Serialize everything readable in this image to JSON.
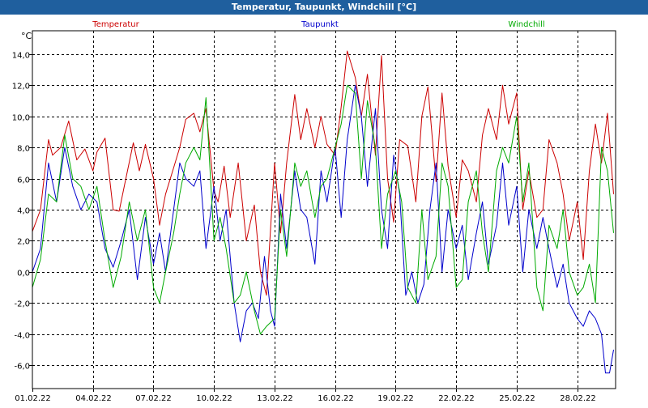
{
  "window_title": "Temperatur, Taupunkt, Windchill [°C]",
  "chart_data": {
    "type": "line",
    "title": "Temperatur, Taupunkt, Windchill [°C]",
    "ylabel": "°C",
    "xlabel": "",
    "ylim": [
      -7.5,
      15.5
    ],
    "xlim": [
      0,
      28.9
    ],
    "yticks": [
      14.0,
      12.0,
      10.0,
      8.0,
      6.0,
      4.0,
      2.0,
      0.0,
      -2.0,
      -4.0,
      -6.0
    ],
    "ytick_labels": [
      "14,0",
      "12,0",
      "10,0",
      "8,0",
      "6,0",
      "4,0",
      "2,0",
      "0,0",
      "-2,0",
      "-4,0",
      "-6,0"
    ],
    "xticks": [
      0,
      3,
      6,
      9,
      12,
      15,
      18,
      21,
      24,
      27
    ],
    "xtick_labels": [
      "01.02.22",
      "04.02.22",
      "07.02.22",
      "10.02.22",
      "13.02.22",
      "16.02.22",
      "19.02.22",
      "22.02.22",
      "25.02.22",
      "28.02.22"
    ],
    "grid": true,
    "series": [
      {
        "name": "Temperatur",
        "color": "#cc0000",
        "x": [
          0,
          0.4,
          0.8,
          1.0,
          1.4,
          1.8,
          2.2,
          2.6,
          3.0,
          3.2,
          3.6,
          4.0,
          4.3,
          4.6,
          5.0,
          5.3,
          5.6,
          6.0,
          6.3,
          6.6,
          7.0,
          7.3,
          7.6,
          8.0,
          8.3,
          8.6,
          9.0,
          9.2,
          9.5,
          9.8,
          10.2,
          10.6,
          11.0,
          11.3,
          11.6,
          12.0,
          12.3,
          12.6,
          13.0,
          13.3,
          13.6,
          14.0,
          14.3,
          14.6,
          15.0,
          15.3,
          15.6,
          16.0,
          16.3,
          16.6,
          17.0,
          17.3,
          17.6,
          17.9,
          18.2,
          18.6,
          19.0,
          19.3,
          19.6,
          20.0,
          20.3,
          20.6,
          21.0,
          21.3,
          21.6,
          22.0,
          22.3,
          22.6,
          23.0,
          23.3,
          23.6,
          24.0,
          24.3,
          24.6,
          25.0,
          25.3,
          25.6,
          26.0,
          26.3,
          26.6,
          27.0,
          27.3,
          27.6,
          27.9,
          28.2,
          28.5,
          28.8
        ],
        "values": [
          2.6,
          4.0,
          8.5,
          7.5,
          8.0,
          9.7,
          7.2,
          7.9,
          6.5,
          7.7,
          8.6,
          4.0,
          3.9,
          5.8,
          8.3,
          6.5,
          8.2,
          6.0,
          3.0,
          5.0,
          6.7,
          8.0,
          9.8,
          10.2,
          9.0,
          10.5,
          5.2,
          4.5,
          6.8,
          3.5,
          7.0,
          2.0,
          4.3,
          0.0,
          -1.5,
          7.0,
          2.5,
          7.0,
          11.4,
          8.5,
          10.5,
          8.0,
          10.0,
          8.2,
          7.5,
          10.6,
          14.2,
          12.5,
          10.0,
          12.7,
          7.5,
          13.9,
          6.0,
          3.2,
          8.5,
          8.1,
          4.5,
          10.0,
          11.9,
          5.8,
          11.5,
          6.8,
          3.5,
          7.2,
          6.5,
          4.5,
          8.8,
          10.5,
          8.5,
          12.0,
          9.5,
          11.5,
          4.0,
          6.5,
          3.5,
          4.0,
          8.5,
          7.0,
          5.0,
          2.0,
          4.5,
          0.8,
          6.5,
          9.5,
          7.0,
          10.2,
          5.0
        ]
      },
      {
        "name": "Taupunkt",
        "color": "#0000cc",
        "x": [
          0,
          0.4,
          0.8,
          1.2,
          1.6,
          2.0,
          2.4,
          2.8,
          3.2,
          3.6,
          4.0,
          4.4,
          4.8,
          5.2,
          5.6,
          6.0,
          6.3,
          6.6,
          7.0,
          7.3,
          7.6,
          8.0,
          8.3,
          8.6,
          9.0,
          9.3,
          9.6,
          10.0,
          10.3,
          10.6,
          10.9,
          11.2,
          11.5,
          11.8,
          12.0,
          12.3,
          12.6,
          13.0,
          13.3,
          13.6,
          14.0,
          14.3,
          14.6,
          15.0,
          15.3,
          15.6,
          16.0,
          16.3,
          16.6,
          17.0,
          17.3,
          17.6,
          17.9,
          18.2,
          18.5,
          18.8,
          19.1,
          19.4,
          19.7,
          20.0,
          20.3,
          20.6,
          21.0,
          21.3,
          21.6,
          22.0,
          22.3,
          22.6,
          23.0,
          23.3,
          23.6,
          24.0,
          24.3,
          24.6,
          25.0,
          25.3,
          25.6,
          26.0,
          26.3,
          26.6,
          27.0,
          27.3,
          27.6,
          27.9,
          28.2,
          28.4,
          28.6,
          28.8
        ],
        "values": [
          0.0,
          1.5,
          7.0,
          4.5,
          8.0,
          5.5,
          4.0,
          5.0,
          4.5,
          1.5,
          0.3,
          2.0,
          4.0,
          -0.5,
          3.5,
          0.5,
          2.5,
          0.0,
          4.0,
          7.0,
          6.0,
          5.5,
          6.5,
          1.5,
          5.5,
          2.0,
          4.0,
          -2.0,
          -4.5,
          -2.5,
          -2.0,
          -3.0,
          1.0,
          -2.5,
          -3.5,
          5.0,
          1.5,
          6.5,
          4.0,
          3.5,
          0.5,
          6.5,
          4.5,
          8.0,
          3.5,
          8.5,
          12.0,
          10.0,
          5.5,
          10.5,
          4.0,
          1.5,
          7.5,
          5.0,
          -1.5,
          0.0,
          -2.0,
          -0.8,
          4.0,
          7.0,
          0.0,
          4.0,
          1.5,
          3.0,
          -0.5,
          2.5,
          4.5,
          0.5,
          3.0,
          7.0,
          3.0,
          5.5,
          0.0,
          4.0,
          1.5,
          3.5,
          1.5,
          -1.0,
          0.5,
          -2.0,
          -3.0,
          -3.5,
          -2.5,
          -3.0,
          -4.0,
          -6.5,
          -6.5,
          -5.0
        ]
      },
      {
        "name": "Windchill",
        "color": "#00aa00",
        "x": [
          0,
          0.4,
          0.8,
          1.2,
          1.6,
          2.0,
          2.4,
          2.8,
          3.2,
          3.6,
          4.0,
          4.4,
          4.8,
          5.2,
          5.6,
          6.0,
          6.3,
          6.6,
          7.0,
          7.3,
          7.6,
          8.0,
          8.3,
          8.6,
          9.0,
          9.3,
          9.6,
          10.0,
          10.3,
          10.6,
          11.0,
          11.3,
          11.6,
          12.0,
          12.3,
          12.6,
          13.0,
          13.3,
          13.6,
          14.0,
          14.3,
          14.6,
          15.0,
          15.3,
          15.6,
          16.0,
          16.3,
          16.6,
          17.0,
          17.3,
          17.6,
          18.0,
          18.3,
          18.6,
          19.0,
          19.3,
          19.6,
          20.0,
          20.3,
          20.6,
          21.0,
          21.3,
          21.6,
          22.0,
          22.3,
          22.6,
          23.0,
          23.3,
          23.6,
          24.0,
          24.3,
          24.6,
          25.0,
          25.3,
          25.6,
          26.0,
          26.3,
          26.6,
          27.0,
          27.3,
          27.6,
          27.9,
          28.2,
          28.5,
          28.8
        ],
        "values": [
          -1.0,
          0.8,
          5.0,
          4.5,
          8.8,
          6.0,
          5.5,
          4.0,
          5.5,
          2.0,
          -1.0,
          1.0,
          4.5,
          2.0,
          4.0,
          -1.0,
          -2.0,
          0.0,
          2.5,
          5.0,
          7.0,
          8.0,
          7.2,
          11.2,
          2.0,
          3.5,
          1.5,
          -2.0,
          -1.5,
          0.0,
          -2.5,
          -4.0,
          -3.5,
          -3.0,
          4.0,
          1.0,
          7.0,
          5.5,
          6.5,
          3.5,
          5.5,
          6.0,
          8.0,
          9.5,
          12.0,
          11.5,
          6.0,
          11.0,
          8.0,
          1.5,
          5.0,
          6.5,
          4.5,
          -1.0,
          -2.0,
          4.0,
          -0.5,
          1.0,
          7.0,
          5.5,
          -1.0,
          -0.5,
          4.5,
          6.5,
          2.5,
          0.0,
          6.5,
          8.0,
          7.0,
          10.0,
          4.5,
          7.0,
          -1.0,
          -2.5,
          3.0,
          1.5,
          4.0,
          0.0,
          -1.5,
          -1.0,
          0.5,
          -2.0,
          8.0,
          6.5,
          2.5
        ]
      }
    ]
  }
}
